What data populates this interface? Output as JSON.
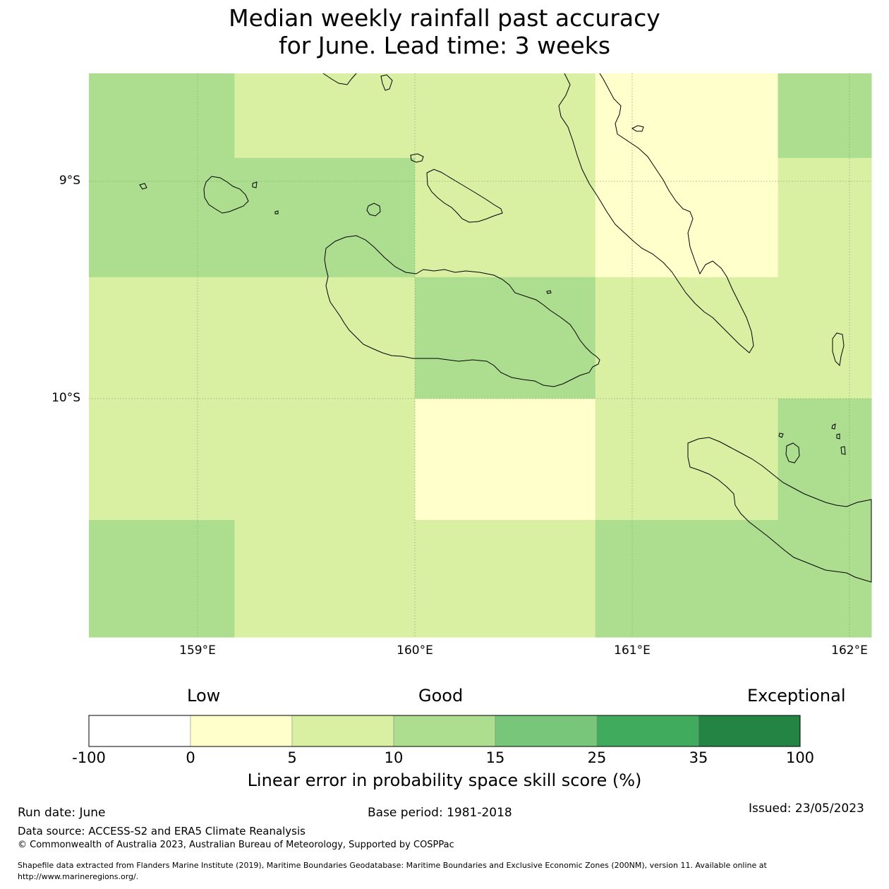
{
  "title": {
    "line1": "Median weekly rainfall past accuracy",
    "line2": "for June. Lead time: 3 weeks"
  },
  "map": {
    "lat_labels": [
      "9°S",
      "10°S"
    ],
    "lon_labels": [
      "159°E",
      "160°E",
      "161°E",
      "162°E"
    ],
    "extent": {
      "lon_min": 158.5,
      "lon_max": 162.1,
      "lat_min": -11.1,
      "lat_max": -8.5
    },
    "grid_cells": [
      {
        "lon0": 158.5,
        "lon1": 159.17,
        "lat0": -8.5,
        "lat1": -8.89,
        "category": "10-15"
      },
      {
        "lon0": 159.17,
        "lon1": 160.0,
        "lat0": -8.5,
        "lat1": -8.89,
        "category": "5-10"
      },
      {
        "lon0": 160.0,
        "lon1": 160.83,
        "lat0": -8.5,
        "lat1": -8.89,
        "category": "5-10"
      },
      {
        "lon0": 160.83,
        "lon1": 161.67,
        "lat0": -8.5,
        "lat1": -8.89,
        "category": "0-5"
      },
      {
        "lon0": 161.67,
        "lon1": 162.1,
        "lat0": -8.5,
        "lat1": -8.89,
        "category": "10-15"
      },
      {
        "lon0": 158.5,
        "lon1": 159.17,
        "lat0": -8.89,
        "lat1": -9.44,
        "category": "10-15"
      },
      {
        "lon0": 159.17,
        "lon1": 160.0,
        "lat0": -8.89,
        "lat1": -9.44,
        "category": "10-15"
      },
      {
        "lon0": 160.0,
        "lon1": 160.83,
        "lat0": -8.89,
        "lat1": -9.44,
        "category": "5-10"
      },
      {
        "lon0": 160.83,
        "lon1": 161.67,
        "lat0": -8.89,
        "lat1": -9.44,
        "category": "0-5"
      },
      {
        "lon0": 161.67,
        "lon1": 162.1,
        "lat0": -8.89,
        "lat1": -9.44,
        "category": "5-10"
      },
      {
        "lon0": 158.5,
        "lon1": 159.17,
        "lat0": -9.44,
        "lat1": -10.0,
        "category": "5-10"
      },
      {
        "lon0": 159.17,
        "lon1": 160.0,
        "lat0": -9.44,
        "lat1": -10.0,
        "category": "5-10"
      },
      {
        "lon0": 160.0,
        "lon1": 160.83,
        "lat0": -9.44,
        "lat1": -10.0,
        "category": "10-15"
      },
      {
        "lon0": 160.83,
        "lon1": 161.67,
        "lat0": -9.44,
        "lat1": -10.0,
        "category": "5-10"
      },
      {
        "lon0": 161.67,
        "lon1": 162.1,
        "lat0": -9.44,
        "lat1": -10.0,
        "category": "5-10"
      },
      {
        "lon0": 158.5,
        "lon1": 159.17,
        "lat0": -10.0,
        "lat1": -10.56,
        "category": "5-10"
      },
      {
        "lon0": 159.17,
        "lon1": 160.0,
        "lat0": -10.0,
        "lat1": -10.56,
        "category": "5-10"
      },
      {
        "lon0": 160.0,
        "lon1": 160.83,
        "lat0": -10.0,
        "lat1": -10.56,
        "category": "0-5"
      },
      {
        "lon0": 160.83,
        "lon1": 161.67,
        "lat0": -10.0,
        "lat1": -10.56,
        "category": "5-10"
      },
      {
        "lon0": 161.67,
        "lon1": 162.1,
        "lat0": -10.0,
        "lat1": -10.56,
        "category": "10-15"
      },
      {
        "lon0": 158.5,
        "lon1": 159.17,
        "lat0": -10.56,
        "lat1": -11.1,
        "category": "10-15"
      },
      {
        "lon0": 159.17,
        "lon1": 160.0,
        "lat0": -10.56,
        "lat1": -11.1,
        "category": "5-10"
      },
      {
        "lon0": 160.0,
        "lon1": 160.83,
        "lat0": -10.56,
        "lat1": -11.1,
        "category": "5-10"
      },
      {
        "lon0": 160.83,
        "lon1": 161.67,
        "lat0": -10.56,
        "lat1": -11.1,
        "category": "10-15"
      },
      {
        "lon0": 161.67,
        "lon1": 162.1,
        "lat0": -10.56,
        "lat1": -11.1,
        "category": "10-15"
      }
    ]
  },
  "colorbar": {
    "categories": [
      "Low",
      "Good",
      "Exceptional"
    ],
    "ticks": [
      "-100",
      "0",
      "5",
      "10",
      "15",
      "25",
      "35",
      "100"
    ],
    "bins": [
      {
        "range": "-100-0",
        "color": "#ffffff"
      },
      {
        "range": "0-5",
        "color": "#ffffcc"
      },
      {
        "range": "5-10",
        "color": "#d9f0a3"
      },
      {
        "range": "10-15",
        "color": "#addd8e"
      },
      {
        "range": "15-25",
        "color": "#78c679"
      },
      {
        "range": "25-35",
        "color": "#41ab5d"
      },
      {
        "range": "35-100",
        "color": "#238443"
      }
    ],
    "label": "Linear error in probability space skill score (%)"
  },
  "footer": {
    "run_date": "Run date: June",
    "base_period": "Base period: 1981-2018",
    "issued": "Issued: 23/05/2023",
    "data_source": "Data source: ACCESS-S2 and ERA5 Climate Reanalysis",
    "copyright": "© Commonwealth of Australia 2023, Australian Bureau of Meteorology, Supported by COSPPac",
    "shapefile_line1": "Shapefile data extracted from Flanders Marine Institute (2019), Maritime Boundaries Geodatabase: Maritime Boundaries and Exclusive Economic Zones (200NM), version 11. Available online at",
    "shapefile_line2": "http://www.marineregions.org/."
  }
}
